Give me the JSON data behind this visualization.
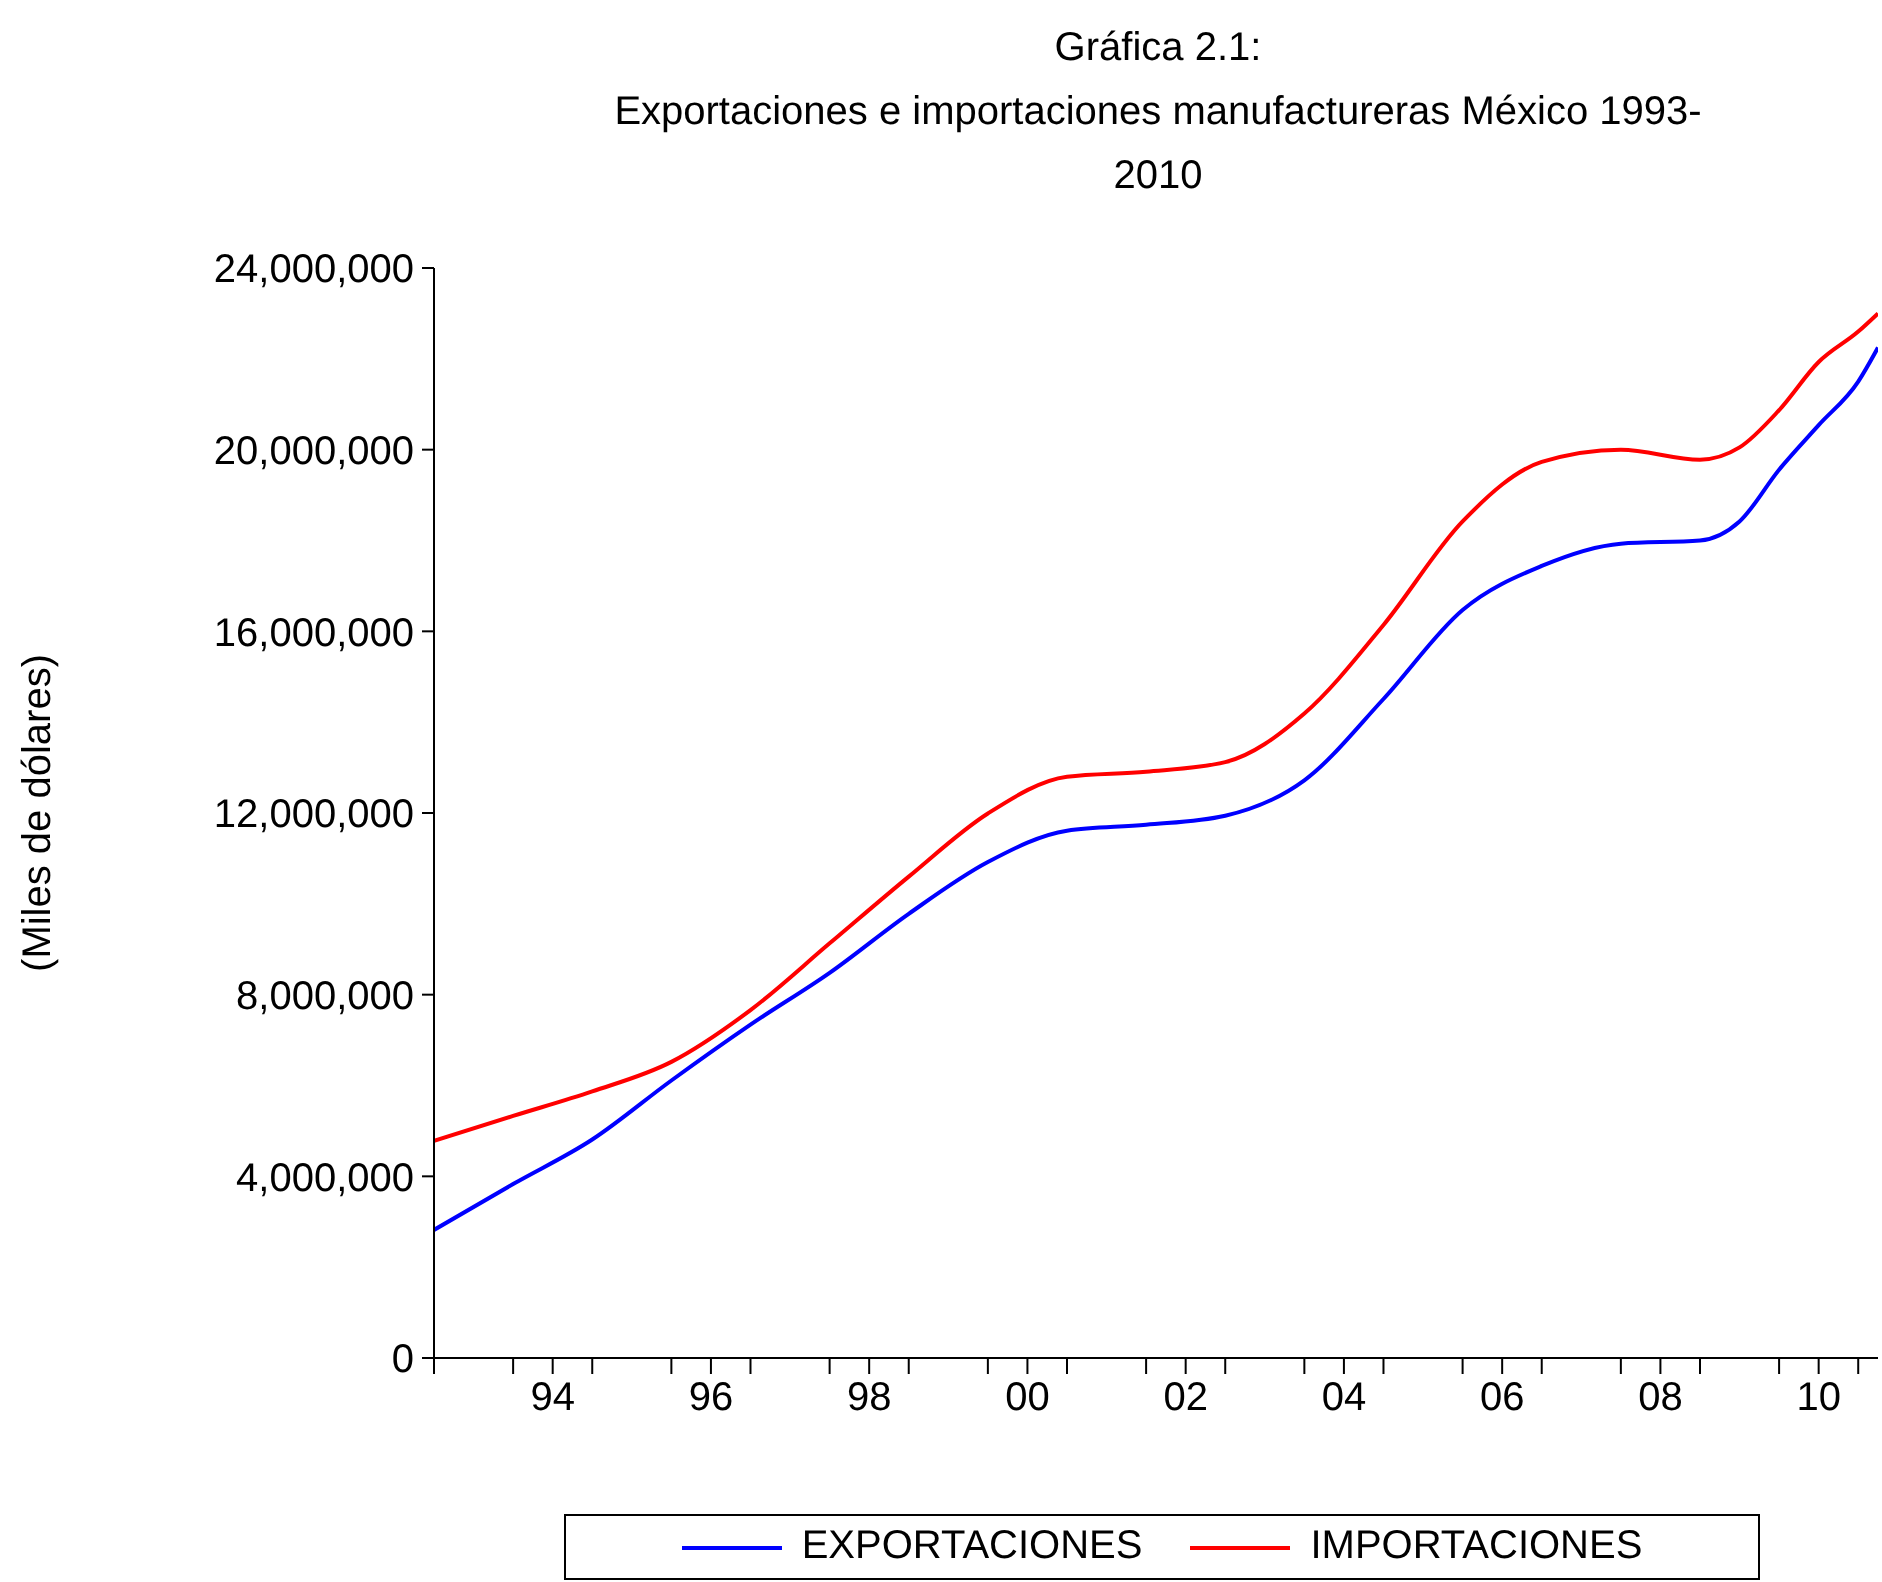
{
  "chart_data": {
    "type": "line",
    "title": "Gráfica 2.1:\nExportaciones e importaciones manufactureras México 1993-\n2010",
    "ylabel": "(Miles de dólares)",
    "x": [
      1992.5,
      1993.5,
      1994.5,
      1995.5,
      1996.5,
      1997.5,
      1998.5,
      1999.5,
      2000.5,
      2001.5,
      2002.5,
      2003.5,
      2004.5,
      2005.5,
      2006.5,
      2007.5,
      2008.5,
      2009,
      2009.5,
      2010,
      2010.5,
      2010.75
    ],
    "series": [
      {
        "name": "EXPORTACIONES",
        "color": "#0000ff",
        "values": [
          2820000,
          3830000,
          4810000,
          6110000,
          7340000,
          8480000,
          9780000,
          10920000,
          11610000,
          11740000,
          11940000,
          12720000,
          14510000,
          16470000,
          17440000,
          17930000,
          18000000,
          18420000,
          19560000,
          20540000,
          21500000,
          22250000
        ]
      },
      {
        "name": "IMPORTACIONES",
        "color": "#ff0000",
        "values": [
          4780000,
          5330000,
          5870000,
          6520000,
          7660000,
          9130000,
          10600000,
          11990000,
          12800000,
          12910000,
          13120000,
          14190000,
          16140000,
          18420000,
          19730000,
          20000000,
          19780000,
          20050000,
          20870000,
          21930000,
          22600000,
          23000000
        ]
      }
    ],
    "xlim": [
      1992.5,
      2010.75
    ],
    "xticks": [
      {
        "value": 1992.5,
        "label": null
      },
      {
        "value": 1993.5,
        "label": null
      },
      {
        "value": 1994,
        "label": "94"
      },
      {
        "value": 1994.5,
        "label": null
      },
      {
        "value": 1995.5,
        "label": null
      },
      {
        "value": 1996,
        "label": "96"
      },
      {
        "value": 1996.5,
        "label": null
      },
      {
        "value": 1997.5,
        "label": null
      },
      {
        "value": 1998,
        "label": "98"
      },
      {
        "value": 1998.5,
        "label": null
      },
      {
        "value": 1999.5,
        "label": null
      },
      {
        "value": 2000,
        "label": "00"
      },
      {
        "value": 2000.5,
        "label": null
      },
      {
        "value": 2001.5,
        "label": null
      },
      {
        "value": 2002,
        "label": "02"
      },
      {
        "value": 2002.5,
        "label": null
      },
      {
        "value": 2003.5,
        "label": null
      },
      {
        "value": 2004,
        "label": "04"
      },
      {
        "value": 2004.5,
        "label": null
      },
      {
        "value": 2005.5,
        "label": null
      },
      {
        "value": 2006,
        "label": "06"
      },
      {
        "value": 2006.5,
        "label": null
      },
      {
        "value": 2007.5,
        "label": null
      },
      {
        "value": 2008,
        "label": "08"
      },
      {
        "value": 2008.5,
        "label": null
      },
      {
        "value": 2009.5,
        "label": null
      },
      {
        "value": 2010,
        "label": "10"
      },
      {
        "value": 2010.5,
        "label": null
      }
    ],
    "ylim": [
      0,
      24000000
    ],
    "yticks": [
      0,
      {
        "value": 4000000,
        "label": "4,000,000"
      },
      {
        "value": 8000000,
        "label": "8,000,000"
      },
      {
        "value": 12000000,
        "label": "12,000,000"
      },
      {
        "value": 16000000,
        "label": "16,000,000"
      },
      {
        "value": 20000000,
        "label": "20,000,000"
      },
      {
        "value": 24000000,
        "label": "24,000,000"
      }
    ],
    "grid": false,
    "legend": "bottom",
    "marker": "none",
    "line_style": "solid"
  }
}
